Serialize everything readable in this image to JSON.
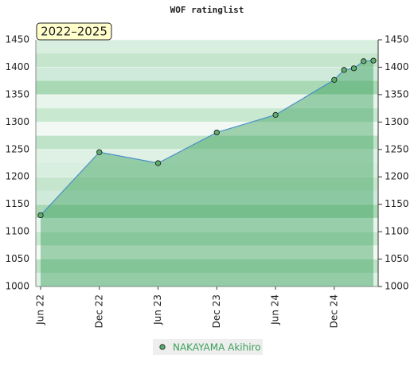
{
  "chart_data": {
    "type": "area",
    "title": "WOF ratinglist",
    "annotation": "2022–2025",
    "x": [
      "2022-06",
      "2022-12",
      "2023-06",
      "2023-12",
      "2024-06",
      "2024-12",
      "2025-01",
      "2025-02",
      "2025-03",
      "2025-04"
    ],
    "series": [
      {
        "name": "NAKAYAMA Akihiro",
        "color": "#4a90c8",
        "values": [
          1130,
          1245,
          1225,
          1281,
          1313,
          1377,
          1395,
          1398,
          1411,
          1412
        ]
      }
    ],
    "xlim": [
      "2022-06",
      "2025-04"
    ],
    "xticks": [
      {
        "value": "2022-06",
        "label": "Jun 22"
      },
      {
        "value": "2022-12",
        "label": "Dec 22"
      },
      {
        "value": "2023-06",
        "label": "Jun 23"
      },
      {
        "value": "2023-12",
        "label": "Dec 23"
      },
      {
        "value": "2024-06",
        "label": "Jun 24"
      },
      {
        "value": "2024-12",
        "label": "Dec 24"
      }
    ],
    "ylim": [
      1000,
      1450
    ],
    "yticks": [
      1000,
      1050,
      1100,
      1150,
      1200,
      1250,
      1300,
      1350,
      1400,
      1450
    ],
    "grid": true
  }
}
